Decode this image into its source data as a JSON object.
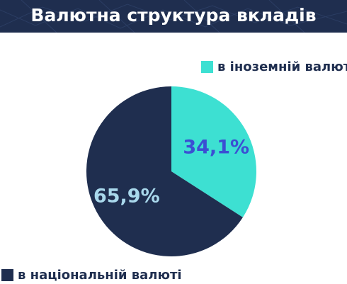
{
  "header": {
    "title": "Валютна структура вкладів"
  },
  "colors": {
    "header_bg": "#1f2e4f",
    "national": "#1f2e4f",
    "foreign": "#3de0d2",
    "national_label": "#a9d8ec",
    "foreign_label": "#3b4fd3"
  },
  "legend": [
    {
      "label": "в іноземній валюті",
      "color": "#3de0d2"
    },
    {
      "label": "в національній валюті",
      "color": "#1f2e4f"
    }
  ],
  "chart_data": {
    "type": "pie",
    "title": "Валютна структура вкладів",
    "start_angle_deg": 0,
    "direction": "clockwise",
    "slices": [
      {
        "label": "в іноземній валюті",
        "value": 34.1,
        "display": "34,1%",
        "color": "#3de0d2",
        "label_color": "#3b4fd3"
      },
      {
        "label": "в національній валюті",
        "value": 65.9,
        "display": "65,9%",
        "color": "#1f2e4f",
        "label_color": "#a9d8ec"
      }
    ],
    "legend_position": "top-right and bottom-left"
  }
}
